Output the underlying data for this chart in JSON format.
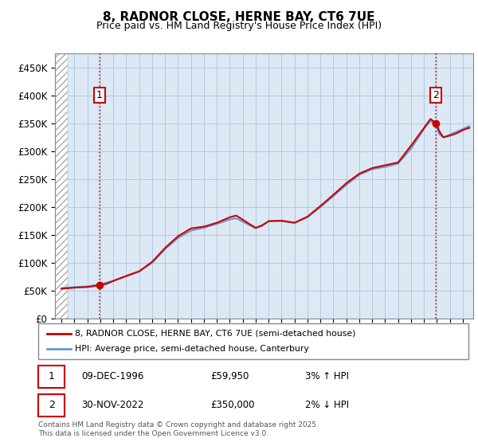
{
  "title": "8, RADNOR CLOSE, HERNE BAY, CT6 7UE",
  "subtitle": "Price paid vs. HM Land Registry's House Price Index (HPI)",
  "legend_line1": "8, RADNOR CLOSE, HERNE BAY, CT6 7UE (semi-detached house)",
  "legend_line2": "HPI: Average price, semi-detached house, Canterbury",
  "annotation1_date": "09-DEC-1996",
  "annotation1_price": "£59,950",
  "annotation1_hpi": "3% ↑ HPI",
  "annotation2_date": "30-NOV-2022",
  "annotation2_price": "£350,000",
  "annotation2_hpi": "2% ↓ HPI",
  "footer": "Contains HM Land Registry data © Crown copyright and database right 2025.\nThis data is licensed under the Open Government Licence v3.0.",
  "hpi_color": "#6699cc",
  "price_color": "#cc0000",
  "annotation_color": "#cc0000",
  "chart_bg_color": "#dce9f5",
  "background_color": "#ffffff",
  "grid_color": "#b0c8e0",
  "ylim": [
    0,
    475000
  ],
  "yticks": [
    0,
    50000,
    100000,
    150000,
    200000,
    250000,
    300000,
    350000,
    400000,
    450000
  ],
  "sale1_year": 1996.92,
  "sale1_price": 59950,
  "sale2_year": 2022.92,
  "sale2_price": 350000,
  "xmin": 1993.5,
  "xmax": 2025.8,
  "hatch_end": 1994.5
}
